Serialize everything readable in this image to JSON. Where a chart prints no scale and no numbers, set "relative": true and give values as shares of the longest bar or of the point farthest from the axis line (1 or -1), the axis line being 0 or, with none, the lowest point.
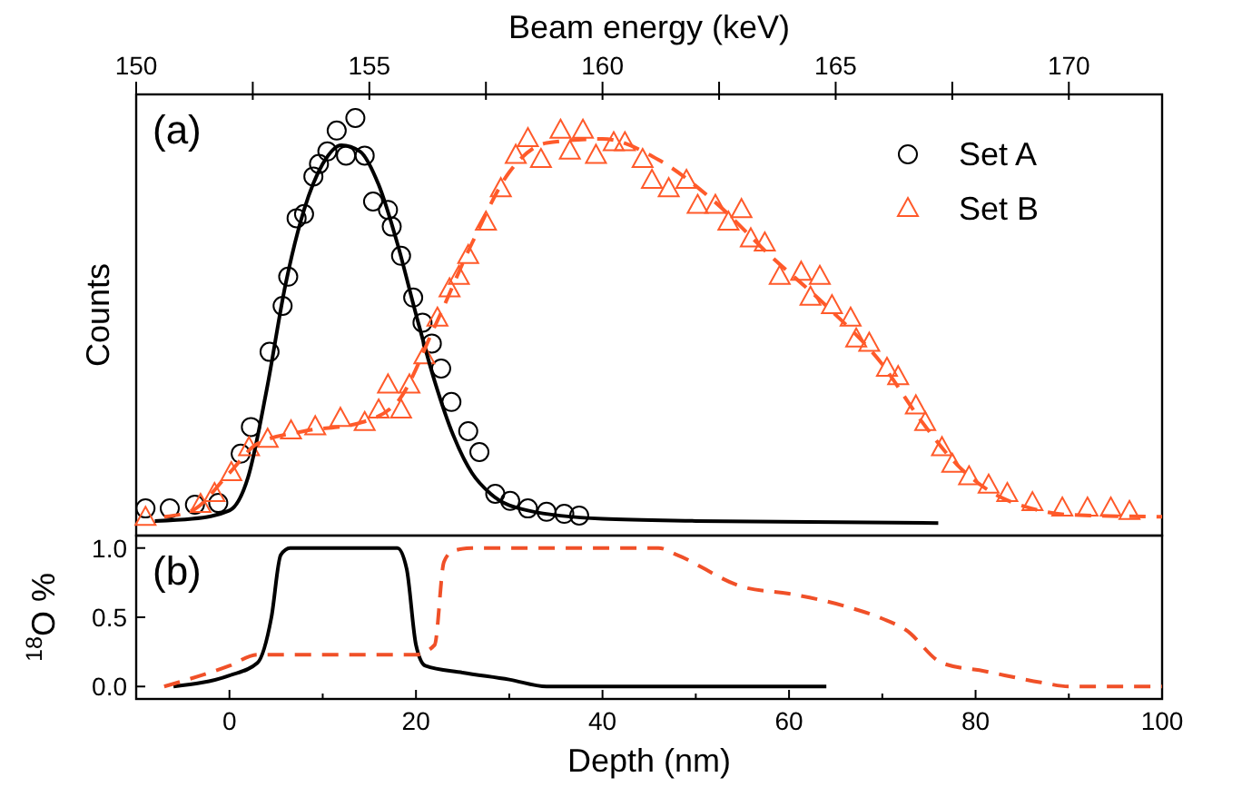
{
  "chart_data": [
    {
      "type": "scatter",
      "relative": true,
      "ylabel": "Counts",
      "x2label": "Beam energy (keV)",
      "xlim": [
        -10,
        100
      ],
      "x2lim": [
        150,
        172
      ],
      "x2ticks": [
        150,
        {
          "value": 152.5,
          "label": null
        },
        155,
        {
          "value": 157.5,
          "label": null
        },
        160,
        {
          "value": 162.5,
          "label": null
        },
        165,
        {
          "value": 167.5,
          "label": null
        },
        170
      ],
      "legend": "top right",
      "annotations": [
        "(a)"
      ],
      "series": [
        {
          "name": "Set A",
          "marker": "circle",
          "color": "#000000",
          "x": [
            -9.0,
            -6.4,
            -3.7,
            -1.2,
            1.2,
            2.3,
            4.3,
            5.7,
            6.3,
            7.2,
            8.0,
            9.0,
            9.6,
            10.5,
            11.5,
            12.5,
            13.5,
            14.5,
            15.4,
            17.0,
            17.4,
            18.4,
            19.7,
            20.7,
            21.7,
            22.7,
            23.8,
            25.6,
            26.8,
            28.5,
            30.1,
            32.0,
            34.0,
            35.9,
            37.5
          ],
          "values": [
            0.065,
            0.065,
            0.074,
            0.078,
            0.196,
            0.26,
            0.44,
            0.55,
            0.62,
            0.76,
            0.77,
            0.86,
            0.89,
            0.92,
            0.97,
            0.91,
            1,
            0.91,
            0.8,
            0.78,
            0.74,
            0.67,
            0.57,
            0.51,
            0.46,
            0.4,
            0.32,
            0.25,
            0.2,
            0.1,
            0.083,
            0.065,
            0.057,
            0.052,
            0.048
          ]
        },
        {
          "type": "line",
          "line_style": "solid",
          "color": "#000000",
          "x": [
            -8,
            -4,
            0,
            2,
            4,
            6,
            8,
            10,
            12,
            14,
            16,
            18,
            20,
            22,
            24,
            26,
            28,
            32,
            40,
            50,
            76
          ],
          "values": [
            0.035,
            0.04,
            0.06,
            0.14,
            0.35,
            0.6,
            0.78,
            0.89,
            0.935,
            0.92,
            0.84,
            0.7,
            0.53,
            0.37,
            0.24,
            0.15,
            0.1,
            0.06,
            0.04,
            0.035,
            0.03
          ]
        },
        {
          "name": "Set B",
          "marker": "triangle",
          "color": "#ff5a2a",
          "x": [
            -9.0,
            -3.1,
            -1.6,
            0.2,
            2.1,
            4.1,
            6.6,
            9.2,
            11.9,
            14.5,
            16.0,
            17.0,
            18.4,
            19.3,
            20.9,
            22.3,
            23.6,
            24.6,
            25.6,
            27.5,
            29.1,
            30.7,
            32.0,
            33.4,
            35.5,
            36.5,
            37.9,
            39.3,
            41.2,
            42.4,
            44.3,
            45.3,
            47.1,
            49.0,
            50.2,
            52.1,
            53.5,
            54.9,
            55.9,
            57.4,
            59.0,
            61.3,
            62.3,
            63.3,
            64.6,
            66.6,
            67.2,
            68.6,
            70.5,
            71.7,
            73.6,
            74.6,
            76.4,
            77.5,
            79.3,
            81.4,
            83.4,
            86.1,
            89.3,
            92.0,
            94.5,
            96.5
          ],
          "values": [
            0.043,
            0.074,
            0.1,
            0.15,
            0.21,
            0.23,
            0.25,
            0.26,
            0.28,
            0.27,
            0.3,
            0.36,
            0.3,
            0.36,
            0.43,
            0.52,
            0.59,
            0.62,
            0.67,
            0.75,
            0.83,
            0.91,
            0.95,
            0.9,
            0.97,
            0.92,
            0.97,
            0.91,
            0.94,
            0.94,
            0.9,
            0.85,
            0.83,
            0.85,
            0.79,
            0.79,
            0.75,
            0.78,
            0.71,
            0.7,
            0.62,
            0.63,
            0.57,
            0.62,
            0.55,
            0.52,
            0.47,
            0.46,
            0.4,
            0.38,
            0.31,
            0.27,
            0.21,
            0.17,
            0.14,
            0.12,
            0.1,
            0.078,
            0.065,
            0.065,
            0.065,
            0.057
          ]
        },
        {
          "type": "line",
          "line_style": "dashed",
          "color": "#ff5a2a",
          "x": [
            -7,
            -4,
            0,
            3,
            8,
            14,
            18,
            22,
            26,
            30,
            34,
            40,
            46,
            52,
            58,
            64,
            70,
            74,
            78,
            82,
            86,
            90,
            100
          ],
          "values": [
            0.045,
            0.06,
            0.15,
            0.22,
            0.25,
            0.27,
            0.32,
            0.5,
            0.7,
            0.87,
            0.94,
            0.95,
            0.9,
            0.8,
            0.67,
            0.55,
            0.41,
            0.28,
            0.17,
            0.1,
            0.065,
            0.05,
            0.045
          ]
        }
      ]
    },
    {
      "type": "line",
      "xlabel": "Depth (nm)",
      "ylabel": "$^{18}$O %",
      "xlim": [
        -10,
        100
      ],
      "ylim": [
        -0.09,
        1.09
      ],
      "xticks": [
        {
          "value": -10,
          "label": null
        },
        0,
        {
          "value": 10,
          "label": null
        },
        20,
        {
          "value": 30,
          "label": null
        },
        40,
        {
          "value": 50,
          "label": null
        },
        60,
        {
          "value": 70,
          "label": null
        },
        80,
        {
          "value": 90,
          "label": null
        },
        100
      ],
      "yticks": [
        {
          "value": 0,
          "label": "0.0"
        },
        0.5,
        {
          "value": 1,
          "label": "1.0"
        }
      ],
      "annotations": [
        "(b)"
      ],
      "series": [
        {
          "line_style": "solid",
          "color": "#000000",
          "x": [
            -6,
            0,
            3,
            4.5,
            5.5,
            6.5,
            18,
            19,
            20,
            21,
            25,
            30,
            34,
            64
          ],
          "values": [
            0,
            0.08,
            0.17,
            0.5,
            0.95,
            1,
            1,
            0.85,
            0.3,
            0.15,
            0.1,
            0.05,
            0,
            0
          ]
        },
        {
          "line_style": "dashed",
          "color": "#f05028",
          "x": [
            -7,
            0,
            3,
            20,
            22,
            23,
            24,
            26,
            46,
            48,
            55,
            60,
            66,
            70,
            72.5,
            76.4,
            81,
            87,
            90,
            100
          ],
          "values": [
            0,
            0.15,
            0.23,
            0.23,
            0.3,
            0.9,
            0.98,
            1,
            1,
            0.95,
            0.72,
            0.67,
            0.58,
            0.49,
            0.41,
            0.17,
            0.11,
            0.03,
            0,
            0
          ]
        }
      ]
    }
  ]
}
